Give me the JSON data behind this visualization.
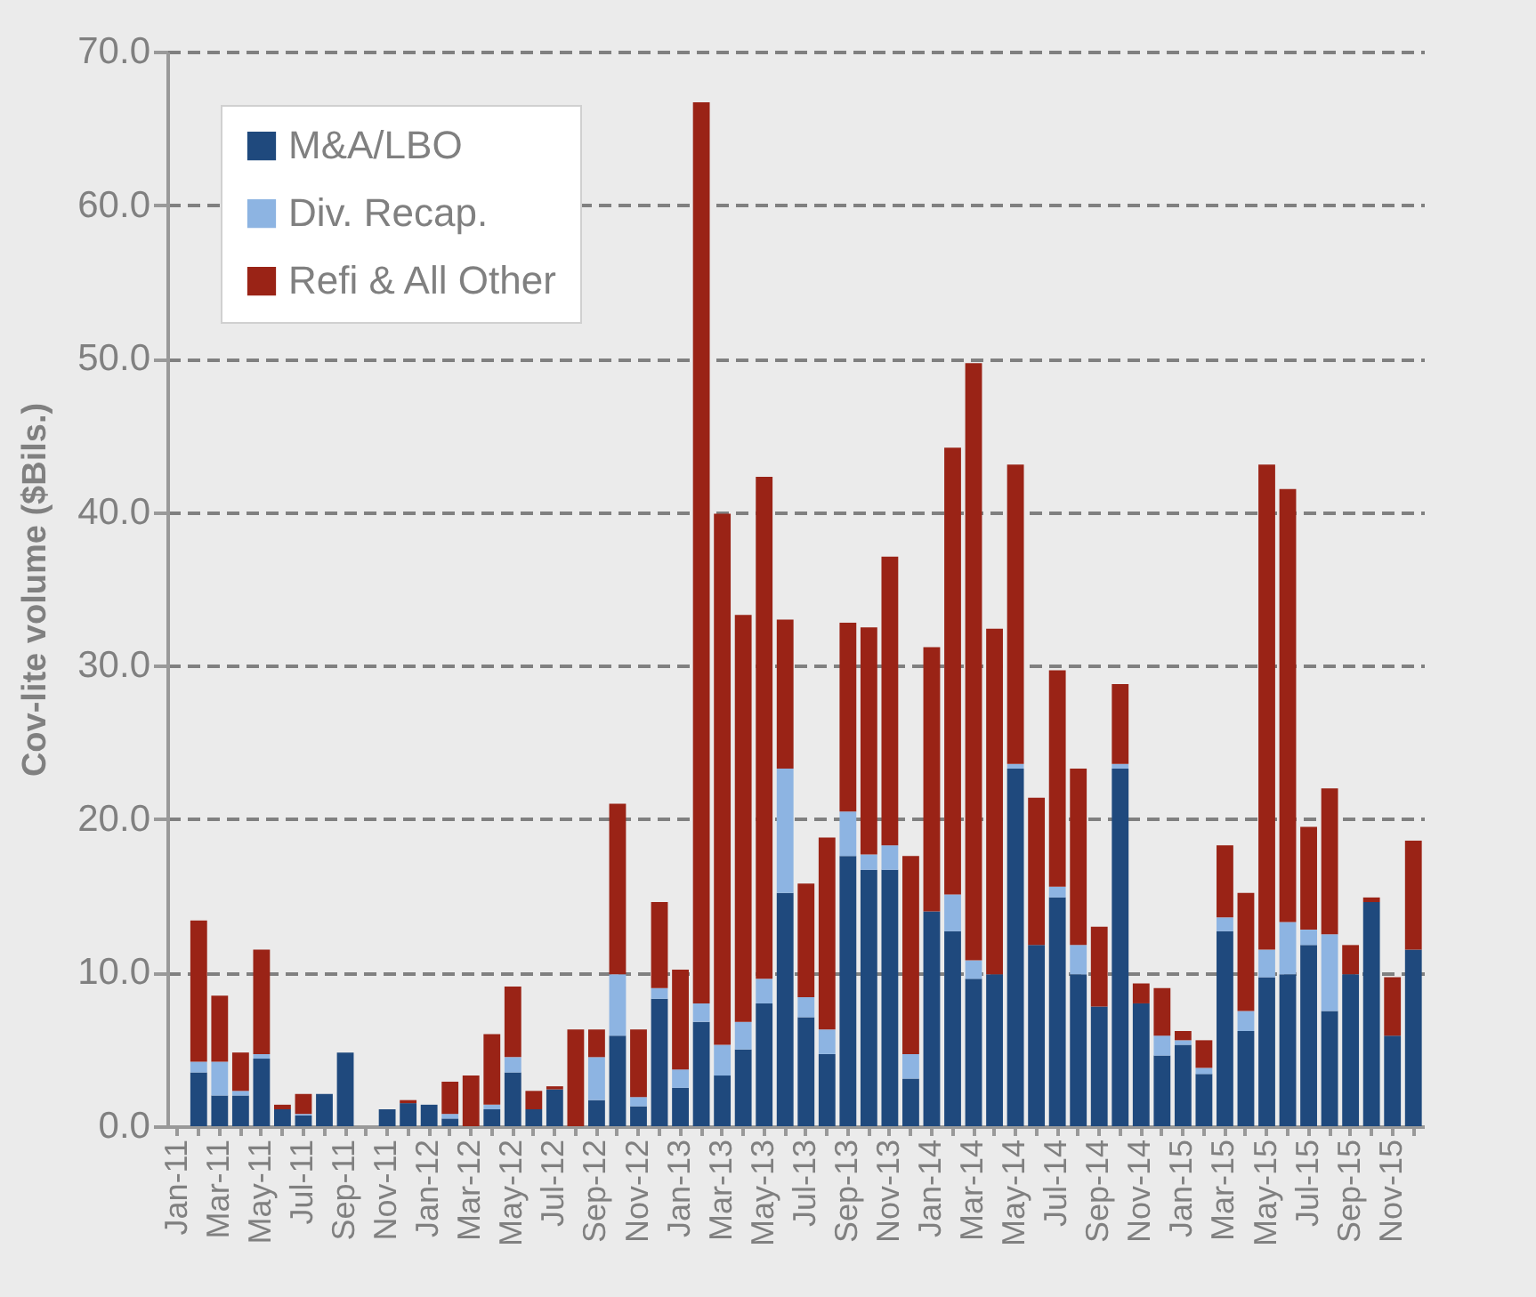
{
  "chart_data": {
    "type": "bar",
    "stacked": true,
    "ylabel": "Cov-lite volume ($Bils.)",
    "categories": [
      "Jan-11",
      null,
      "Mar-11",
      null,
      "May-11",
      null,
      "Jul-11",
      null,
      "Sep-11",
      null,
      "Nov-11",
      null,
      "Jan-12",
      null,
      "Mar-12",
      null,
      "May-12",
      null,
      "Jul-12",
      null,
      "Sep-12",
      null,
      "Nov-12",
      null,
      "Jan-13",
      null,
      "Mar-13",
      null,
      "May-13",
      null,
      "Jul-13",
      null,
      "Sep-13",
      null,
      "Nov-13",
      null,
      "Jan-14",
      null,
      "Mar-14",
      null,
      "May-14",
      null,
      "Jul-14",
      null,
      "Sep-14",
      null,
      "Nov-14",
      null,
      "Jan-15",
      null,
      "Mar-15",
      null,
      "May-15",
      null,
      "Jul-15",
      null,
      "Sep-15",
      null,
      "Nov-15",
      null
    ],
    "series": [
      {
        "name": "M&A/LBO",
        "color": "#1f497d",
        "values": [
          null,
          3.5,
          2.0,
          2.0,
          4.4,
          1.1,
          0.7,
          2.1,
          4.8,
          0,
          1.1,
          1.5,
          1.4,
          0.5,
          0,
          1.1,
          3.5,
          1.1,
          2.4,
          0,
          1.7,
          5.9,
          1.3,
          8.3,
          2.5,
          6.8,
          3.3,
          5.0,
          8.0,
          15.2,
          7.1,
          4.7,
          17.6,
          16.7,
          16.7,
          3.1,
          14.0,
          12.7,
          9.6,
          9.9,
          23.3,
          11.8,
          14.9,
          9.9,
          7.8,
          23.3,
          8.0,
          4.6,
          5.3,
          3.4,
          12.7,
          6.2,
          9.7,
          9.9,
          11.8,
          7.5,
          9.9,
          14.6,
          5.9,
          11.5
        ]
      },
      {
        "name": "Div. Recap.",
        "color": "#8db4e2",
        "values": [
          null,
          0.7,
          2.2,
          0.3,
          0.3,
          0,
          0.1,
          0,
          0,
          0,
          0,
          0,
          0,
          0.3,
          0,
          0.3,
          1.0,
          0,
          0,
          0,
          2.8,
          4.0,
          0.6,
          0.7,
          1.2,
          1.2,
          2.0,
          1.8,
          1.6,
          8.1,
          1.3,
          1.6,
          2.9,
          1.0,
          1.6,
          1.6,
          0,
          2.4,
          1.2,
          0,
          0.3,
          0,
          0.7,
          1.9,
          0,
          0.3,
          0,
          1.3,
          0.3,
          0.4,
          0.9,
          1.3,
          1.8,
          3.4,
          1.0,
          5.0,
          0,
          0,
          0,
          0
        ]
      },
      {
        "name": "Refi & All Other",
        "color": "#9a2316",
        "values": [
          null,
          9.2,
          4.3,
          2.5,
          6.8,
          0.3,
          1.3,
          0,
          0,
          0,
          0,
          0.2,
          0,
          2.1,
          3.3,
          4.6,
          4.6,
          1.2,
          0.2,
          6.3,
          1.8,
          11.1,
          4.4,
          5.6,
          6.5,
          58.7,
          34.6,
          26.5,
          32.7,
          9.7,
          7.4,
          12.5,
          12.3,
          14.8,
          18.8,
          12.9,
          17.2,
          29.1,
          38.9,
          22.5,
          19.5,
          9.6,
          14.1,
          11.5,
          5.2,
          5.2,
          1.3,
          3.1,
          0.6,
          1.8,
          4.7,
          7.7,
          31.6,
          28.2,
          6.7,
          9.5,
          1.9,
          0.3,
          3.8,
          7.1
        ]
      }
    ],
    "ylim": [
      0,
      70
    ],
    "yticks": [
      {
        "value": 0,
        "label": "0.0"
      },
      {
        "value": 10,
        "label": "10.0"
      },
      {
        "value": 20,
        "label": "20.0"
      },
      {
        "value": 30,
        "label": "30.0"
      },
      {
        "value": 40,
        "label": "40.0"
      },
      {
        "value": 50,
        "label": "50.0"
      },
      {
        "value": 60,
        "label": "60.0"
      },
      {
        "value": 70,
        "label": "70.0"
      }
    ],
    "grid": "y",
    "legend": "top left"
  }
}
